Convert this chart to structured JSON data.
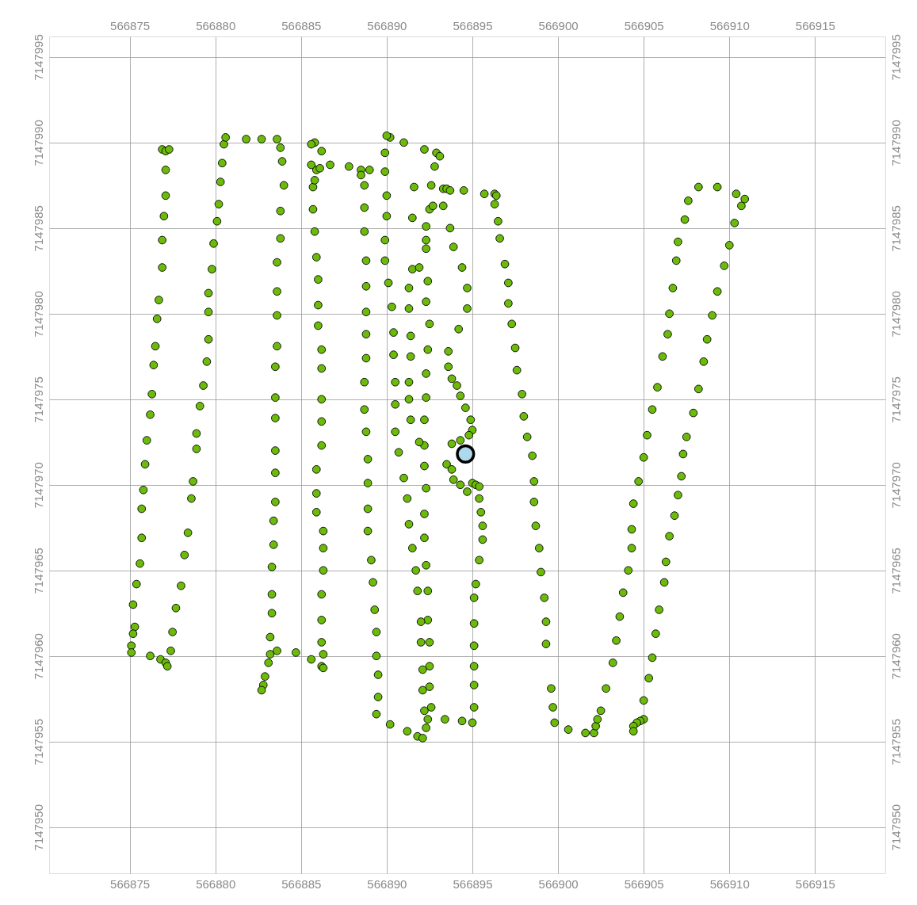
{
  "chart_data": {
    "type": "scatter",
    "marker": "circle",
    "grid": true,
    "xlim": [
      566870.3,
      566919.1
    ],
    "ylim": [
      7147947.3,
      7147996.2
    ],
    "x2lim": [
      566870.3,
      566919.1
    ],
    "y2lim": [
      7147947.3,
      7147996.2
    ],
    "xticks": [
      566875,
      566880,
      566885,
      566890,
      566895,
      566900,
      566905,
      566910,
      566915
    ],
    "x2ticks": [
      566875,
      566880,
      566885,
      566890,
      566895,
      566900,
      566905,
      566910,
      566915
    ],
    "yticks": [
      7147950,
      7147955,
      7147960,
      7147965,
      7147970,
      7147975,
      7147980,
      7147985,
      7147990,
      7147995
    ],
    "y2ticks": [
      7147950,
      7147955,
      7147960,
      7147965,
      7147970,
      7147975,
      7147980,
      7147985,
      7147990,
      7147995
    ],
    "series": [
      {
        "color": "#6cbb0a",
        "x": [
          566876.9,
          566877.1,
          566877.3,
          566877.1,
          566877.1,
          566877.0,
          566876.9,
          566876.9,
          566876.7,
          566876.6,
          566876.5,
          566876.4,
          566876.3,
          566876.2,
          566876.0,
          566875.9,
          566875.8,
          566875.7,
          566875.7,
          566875.6,
          566875.4,
          566875.2,
          566875.3,
          566875.2,
          566875.1,
          566875.1,
          566876.2,
          566876.8,
          566877.1,
          566877.2,
          566877.4,
          566877.5,
          566877.7,
          566878.0,
          566878.2,
          566878.4,
          566878.6,
          566878.7,
          566878.9,
          566878.9,
          566879.1,
          566879.3,
          566879.5,
          566879.6,
          566879.6,
          566879.6,
          566879.8,
          566879.9,
          566880.1,
          566880.2,
          566880.3,
          566880.4,
          566880.5,
          566880.6,
          566881.8,
          566882.7,
          566883.6,
          566883.8,
          566883.9,
          566884.0,
          566883.8,
          566883.8,
          566883.6,
          566883.6,
          566883.6,
          566883.6,
          566883.5,
          566883.5,
          566883.5,
          566883.5,
          566883.5,
          566883.5,
          566883.4,
          566883.4,
          566883.3,
          566883.3,
          566883.3,
          566883.2,
          566883.2,
          566883.1,
          566882.9,
          566882.8,
          566882.7,
          566883.6,
          566884.7,
          566885.6,
          566886.2,
          566886.3,
          566886.3,
          566886.2,
          566886.2,
          566886.2,
          566886.3,
          566886.3,
          566886.3,
          566886.2,
          566886.2,
          566886.2,
          566886.2,
          566886.2,
          566885.9,
          566885.9,
          566885.9,
          566886.0,
          566886.0,
          566886.0,
          566885.9,
          566885.8,
          566885.7,
          566885.7,
          566885.8,
          566885.9,
          566886.1,
          566885.8,
          566886.2,
          566885.6,
          566885.6,
          566886.7,
          566887.8,
          566888.5,
          566889.0,
          566888.5,
          566888.7,
          566888.7,
          566888.7,
          566888.8,
          566888.8,
          566888.8,
          566888.8,
          566888.8,
          566888.7,
          566888.7,
          566888.8,
          566888.9,
          566888.9,
          566888.9,
          566888.9,
          566889.1,
          566889.2,
          566889.3,
          566889.4,
          566889.4,
          566889.5,
          566889.5,
          566889.4,
          566890.2,
          566891.2,
          566891.8,
          566892.1,
          566892.3,
          566892.4,
          566892.6,
          566892.5,
          566892.5,
          566892.5,
          566892.4,
          566892.4,
          566892.3,
          566892.2,
          566892.2,
          566892.3,
          566892.2,
          566892.2,
          566892.2,
          566892.3,
          566892.3,
          566892.4,
          566892.5,
          566892.3,
          566892.4,
          566892.3,
          566892.3,
          566892.3,
          566892.5,
          566892.6,
          566892.8,
          566892.9,
          566893.1,
          566892.2,
          566891.0,
          566890.2,
          566890.0,
          566889.9,
          566889.9,
          566890.0,
          566890.0,
          566889.9,
          566889.9,
          566890.1,
          566890.3,
          566890.4,
          566890.4,
          566890.5,
          566890.5,
          566890.5,
          566890.7,
          566891.0,
          566891.2,
          566891.3,
          566891.5,
          566891.7,
          566891.8,
          566892.0,
          566892.0,
          566892.1,
          566892.1,
          566892.2,
          566891.6,
          566891.5,
          566891.5,
          566891.3,
          566891.3,
          566891.4,
          566891.4,
          566891.3,
          566891.3,
          566891.4,
          566891.9,
          566891.9,
          566892.7,
          566893.3,
          566893.5,
          566893.7,
          566894.5,
          566893.3,
          566893.7,
          566893.9,
          566894.4,
          566894.7,
          566894.7,
          566894.2,
          566893.6,
          566893.6,
          566893.8,
          566894.1,
          566894.3,
          566894.6,
          566894.9,
          566895.0,
          566894.8,
          566894.3,
          566893.8,
          566893.5,
          566893.8,
          566893.9,
          566894.3,
          566894.7,
          566895.0,
          566895.2,
          566895.4,
          566895.4,
          566895.5,
          566895.6,
          566895.6,
          566895.4,
          566895.2,
          566895.1,
          566895.1,
          566895.1,
          566895.1,
          566895.1,
          566895.1,
          566895.0,
          566894.4,
          566893.4,
          566895.7,
          566896.3,
          566896.4,
          566896.3,
          566896.5,
          566896.6,
          566896.9,
          566897.1,
          566897.1,
          566897.3,
          566897.5,
          566897.6,
          566897.9,
          566898.0,
          566898.2,
          566898.5,
          566898.6,
          566898.6,
          566898.7,
          566898.9,
          566899.0,
          566899.2,
          566899.3,
          566899.3,
          566899.6,
          566899.7,
          566899.8,
          566900.6,
          566901.6,
          566902.1,
          566902.2,
          566902.3,
          566902.5,
          566902.8,
          566903.2,
          566903.4,
          566903.6,
          566903.8,
          566904.1,
          566904.3,
          566904.3,
          566904.4,
          566904.7,
          566905.0,
          566905.2,
          566905.5,
          566905.8,
          566906.1,
          566906.4,
          566906.5,
          566906.7,
          566906.9,
          566907.0,
          566907.4,
          566907.6,
          566908.2,
          566909.3,
          566910.4,
          566910.7,
          566910.9,
          566910.3,
          566910.0,
          566909.7,
          566909.3,
          566909.0,
          566908.7,
          566908.5,
          566908.2,
          566907.9,
          566907.5,
          566907.3,
          566907.2,
          566907.0,
          566906.8,
          566906.5,
          566906.3,
          566906.2,
          566905.9,
          566905.7,
          566905.5,
          566905.3,
          566905.0,
          566905.0,
          566904.8,
          566904.6,
          566904.4,
          566904.4
        ],
        "values": [
          7147989.6,
          7147989.5,
          7147989.6,
          7147988.4,
          7147986.9,
          7147985.7,
          7147984.3,
          7147982.7,
          7147980.8,
          7147979.7,
          7147978.1,
          7147977.0,
          7147975.3,
          7147974.1,
          7147972.6,
          7147971.2,
          7147969.7,
          7147968.6,
          7147966.9,
          7147965.4,
          7147964.2,
          7147963.0,
          7147961.7,
          7147961.3,
          7147960.6,
          7147960.2,
          7147960.0,
          7147959.8,
          7147959.6,
          7147959.4,
          7147960.3,
          7147961.4,
          7147962.8,
          7147964.1,
          7147965.9,
          7147967.2,
          7147969.2,
          7147970.2,
          7147972.1,
          7147973.0,
          7147974.6,
          7147975.8,
          7147977.2,
          7147978.5,
          7147980.1,
          7147981.2,
          7147982.6,
          7147984.1,
          7147985.4,
          7147986.4,
          7147987.7,
          7147988.8,
          7147989.9,
          7147990.3,
          7147990.2,
          7147990.2,
          7147990.2,
          7147989.7,
          7147988.9,
          7147987.5,
          7147986.0,
          7147984.4,
          7147983.0,
          7147981.3,
          7147979.9,
          7147978.1,
          7147976.9,
          7147975.1,
          7147973.9,
          7147972.0,
          7147970.7,
          7147969.0,
          7147967.9,
          7147966.5,
          7147965.2,
          7147963.6,
          7147962.5,
          7147961.1,
          7147960.1,
          7147959.6,
          7147958.8,
          7147958.3,
          7147958.0,
          7147960.3,
          7147960.2,
          7147959.8,
          7147959.4,
          7147959.3,
          7147960.1,
          7147960.8,
          7147962.1,
          7147963.6,
          7147965.0,
          7147966.3,
          7147967.3,
          7147972.3,
          7147973.7,
          7147975.0,
          7147976.8,
          7147977.9,
          7147968.4,
          7147969.5,
          7147970.9,
          7147979.3,
          7147980.5,
          7147982.0,
          7147983.3,
          7147984.8,
          7147986.1,
          7147987.4,
          7147987.8,
          7147988.4,
          7147988.5,
          7147990.0,
          7147989.5,
          7147989.9,
          7147988.7,
          7147988.7,
          7147988.6,
          7147988.4,
          7147988.4,
          7147988.1,
          7147987.5,
          7147986.2,
          7147984.8,
          7147983.1,
          7147981.6,
          7147980.1,
          7147978.8,
          7147977.4,
          7147976.0,
          7147974.4,
          7147973.1,
          7147971.5,
          7147970.1,
          7147968.6,
          7147967.3,
          7147965.6,
          7147964.3,
          7147962.7,
          7147961.4,
          7147960.0,
          7147958.9,
          7147957.6,
          7147956.6,
          7147956.0,
          7147955.6,
          7147955.3,
          7147955.2,
          7147955.8,
          7147956.3,
          7147957.0,
          7147958.2,
          7147959.4,
          7147960.8,
          7147962.1,
          7147963.8,
          7147965.3,
          7147966.9,
          7147968.3,
          7147969.8,
          7147971.1,
          7147972.3,
          7147973.8,
          7147975.1,
          7147976.5,
          7147977.9,
          7147979.4,
          7147980.7,
          7147981.9,
          7147983.8,
          7147984.3,
          7147985.1,
          7147986.1,
          7147987.5,
          7147988.6,
          7147989.4,
          7147989.2,
          7147989.6,
          7147990.0,
          7147990.3,
          7147990.4,
          7147989.4,
          7147988.3,
          7147986.9,
          7147985.7,
          7147984.3,
          7147983.1,
          7147981.8,
          7147980.4,
          7147978.9,
          7147977.6,
          7147976.0,
          7147974.7,
          7147973.1,
          7147971.9,
          7147970.4,
          7147969.2,
          7147967.7,
          7147966.3,
          7147965.0,
          7147963.8,
          7147962.0,
          7147960.8,
          7147959.2,
          7147958.0,
          7147956.8,
          7147987.4,
          7147985.6,
          7147982.6,
          7147981.5,
          7147980.3,
          7147978.7,
          7147977.5,
          7147976.0,
          7147975.0,
          7147973.8,
          7147972.5,
          7147982.7,
          7147986.3,
          7147987.3,
          7147987.3,
          7147987.2,
          7147987.2,
          7147986.3,
          7147985.0,
          7147983.9,
          7147982.7,
          7147981.5,
          7147980.3,
          7147979.1,
          7147977.8,
          7147976.9,
          7147976.2,
          7147975.8,
          7147975.2,
          7147974.5,
          7147973.8,
          7147973.2,
          7147972.9,
          7147972.6,
          7147972.4,
          7147971.2,
          7147970.9,
          7147970.3,
          7147970.0,
          7147969.6,
          7147970.1,
          7147970.0,
          7147969.9,
          7147969.2,
          7147968.4,
          7147967.6,
          7147966.8,
          7147965.6,
          7147964.2,
          7147963.4,
          7147961.9,
          7147960.6,
          7147959.4,
          7147958.3,
          7147957.0,
          7147956.1,
          7147956.2,
          7147956.3,
          7147987.0,
          7147987.0,
          7147986.9,
          7147986.4,
          7147985.4,
          7147984.4,
          7147982.9,
          7147981.8,
          7147980.6,
          7147979.4,
          7147978.0,
          7147976.7,
          7147975.3,
          7147974.0,
          7147972.8,
          7147971.7,
          7147970.2,
          7147969.0,
          7147967.6,
          7147966.3,
          7147964.9,
          7147963.4,
          7147962.0,
          7147960.7,
          7147958.1,
          7147957.0,
          7147956.1,
          7147955.7,
          7147955.5,
          7147955.5,
          7147955.9,
          7147956.3,
          7147956.8,
          7147958.1,
          7147959.6,
          7147960.9,
          7147962.3,
          7147963.7,
          7147965.0,
          7147966.3,
          7147967.4,
          7147968.9,
          7147970.2,
          7147971.6,
          7147972.9,
          7147974.4,
          7147975.7,
          7147977.5,
          7147978.8,
          7147980.0,
          7147981.5,
          7147983.1,
          7147984.2,
          7147985.5,
          7147986.6,
          7147987.4,
          7147987.4,
          7147987.0,
          7147986.3,
          7147986.7,
          7147985.3,
          7147984.0,
          7147982.8,
          7147981.3,
          7147979.9,
          7147978.5,
          7147977.2,
          7147975.6,
          7147974.2,
          7147972.8,
          7147971.8,
          7147970.5,
          7147969.4,
          7147968.2,
          7147967.0,
          7147965.5,
          7147964.3,
          7147962.7,
          7147961.3,
          7147959.9,
          7147958.7,
          7147957.4,
          7147956.3,
          7147956.2,
          7147956.1,
          7147955.9,
          7147955.6
        ]
      },
      {
        "color": "#aed8ec",
        "x": [
          566894.6
        ],
        "values": [
          7147971.8
        ]
      }
    ]
  }
}
